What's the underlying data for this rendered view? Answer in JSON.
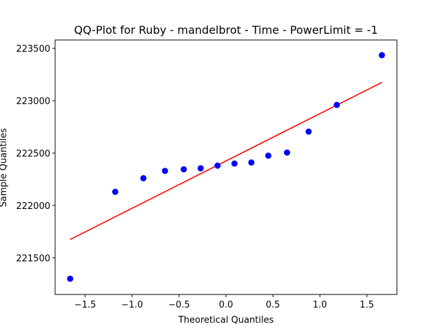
{
  "chart_data": {
    "type": "scatter",
    "title": "QQ-Plot for Ruby - mandelbrot - Time - PowerLimit = -1",
    "xlabel": "Theoretical Quantiles",
    "ylabel": "Sample Quantiles",
    "xlim": [
      -1.82,
      1.82
    ],
    "ylim": [
      221150,
      223580
    ],
    "xticks": [
      -1.5,
      -1.0,
      -0.5,
      0.0,
      0.5,
      1.0,
      1.5
    ],
    "xtick_labels": [
      "−1.5",
      "−1.0",
      "−0.5",
      "0.0",
      "0.5",
      "1.0",
      "1.5"
    ],
    "yticks": [
      221500,
      222000,
      222500,
      223000,
      223500
    ],
    "ytick_labels": [
      "221500",
      "222000",
      "222500",
      "223000",
      "223500"
    ],
    "grid": false,
    "series": [
      {
        "kind": "points",
        "color": "#0000ff",
        "x": [
          -1.66,
          -1.18,
          -0.88,
          -0.65,
          -0.45,
          -0.27,
          -0.09,
          0.09,
          0.27,
          0.45,
          0.65,
          0.88,
          1.18,
          1.66
        ],
        "y": [
          221300,
          222130,
          222260,
          222330,
          222345,
          222355,
          222380,
          222400,
          222410,
          222475,
          222505,
          222705,
          222960,
          223435
        ]
      },
      {
        "kind": "line",
        "color": "#ff0000",
        "x": [
          -1.66,
          1.66
        ],
        "y": [
          221675,
          223175
        ]
      }
    ]
  }
}
